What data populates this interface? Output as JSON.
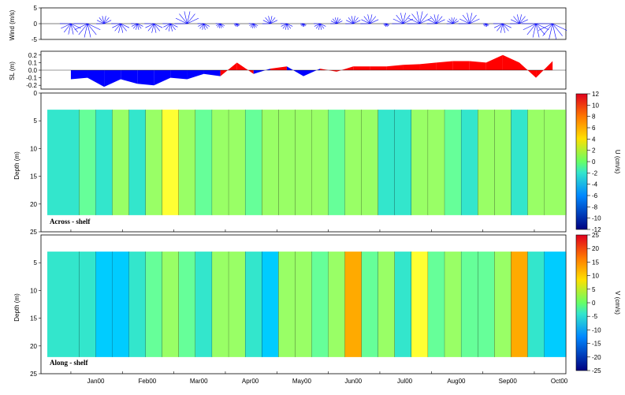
{
  "chart_data": [
    {
      "type": "area",
      "name": "wind",
      "ylabel": "Wind (m/s)",
      "ylim": [
        -5,
        5
      ],
      "yticks": [
        -5,
        0,
        5
      ],
      "months": [
        "Jan00",
        "Feb00",
        "Mar00",
        "Apr00",
        "May00",
        "Jun00",
        "Jul00",
        "Aug00",
        "Sep00",
        "Oct00"
      ],
      "x_days": [
        0,
        10,
        20,
        30,
        40,
        50,
        60,
        70,
        80,
        90,
        100,
        110,
        120,
        130,
        140,
        150,
        160,
        170,
        180,
        190,
        200,
        210,
        220,
        230,
        240,
        250,
        260,
        270,
        280,
        290
      ],
      "values": [
        -3.5,
        -4.5,
        2.5,
        -3,
        -2,
        -3,
        -2.5,
        4,
        -2,
        -1.5,
        -1,
        -1.5,
        2.5,
        -2,
        -1,
        -2,
        2,
        2.5,
        3,
        -1,
        3.5,
        4,
        3,
        2,
        3.5,
        -1,
        -3,
        3,
        -4.5,
        -5
      ],
      "colors": {
        "fill": "#0000ff"
      }
    },
    {
      "type": "area",
      "name": "sea-level",
      "ylabel": "SL (m)",
      "ylim": [
        -0.25,
        0.25
      ],
      "yticks": [
        -0.2,
        -0.1,
        0.0,
        0.1,
        0.2
      ],
      "x_days": [
        0,
        10,
        20,
        30,
        40,
        50,
        60,
        70,
        80,
        90,
        100,
        110,
        120,
        130,
        140,
        150,
        160,
        170,
        180,
        190,
        200,
        210,
        220,
        230,
        240,
        250,
        260,
        270,
        280,
        290
      ],
      "values": [
        -0.12,
        -0.1,
        -0.22,
        -0.12,
        -0.18,
        -0.2,
        -0.1,
        -0.12,
        -0.05,
        -0.08,
        0.1,
        -0.05,
        0.02,
        0.05,
        -0.08,
        0.02,
        -0.02,
        0.05,
        0.05,
        0.05,
        0.07,
        0.08,
        0.1,
        0.12,
        0.12,
        0.1,
        0.2,
        0.1,
        -0.1,
        0.12
      ],
      "colors": {
        "positive": "#ff0000",
        "negative": "#0000ff"
      }
    },
    {
      "type": "heatmap",
      "name": "across-shelf",
      "panel_label": "Across - shelf",
      "ylabel": "Depth (m)",
      "ylim": [
        25,
        0
      ],
      "yticks": [
        0,
        5,
        10,
        15,
        20,
        25
      ],
      "data_depth_range": [
        3,
        22
      ],
      "colorbar": {
        "label": "U (cm/s)",
        "ticks": [
          12,
          10,
          8,
          6,
          4,
          2,
          0,
          -2,
          -4,
          -6,
          -8,
          -10,
          -12
        ]
      },
      "x_days": [
        0,
        10,
        20,
        30,
        40,
        50,
        60,
        70,
        80,
        90,
        100,
        110,
        120,
        130,
        140,
        150,
        160,
        170,
        180,
        190,
        200,
        210,
        220,
        230,
        240,
        250,
        260,
        270,
        280,
        290
      ],
      "values": [
        -2,
        -1,
        -3,
        1,
        -2,
        0,
        4,
        0,
        -1,
        0,
        2,
        -1,
        0,
        1,
        0,
        0,
        -1,
        0,
        1,
        -2,
        -3,
        1,
        0,
        -1,
        -2,
        0,
        0,
        -3,
        0,
        0
      ]
    },
    {
      "type": "heatmap",
      "name": "along-shelf",
      "panel_label": "Along - shelf",
      "ylabel": "Depth (m)",
      "ylim": [
        25,
        0
      ],
      "yticks": [
        5,
        10,
        15,
        20,
        25
      ],
      "data_depth_range": [
        3,
        22
      ],
      "colorbar": {
        "label": "V (cm/s)",
        "ticks": [
          25,
          20,
          15,
          10,
          5,
          0,
          -5,
          -10,
          -15,
          -20,
          -25
        ]
      },
      "x_days": [
        0,
        10,
        20,
        30,
        40,
        50,
        60,
        70,
        80,
        90,
        100,
        110,
        120,
        130,
        140,
        150,
        160,
        170,
        180,
        190,
        200,
        210,
        220,
        230,
        240,
        250,
        260,
        270,
        280,
        290
      ],
      "values": [
        -8,
        -5,
        -10,
        -12,
        -5,
        -3,
        5,
        -2,
        -4,
        2,
        3,
        -5,
        -10,
        2,
        5,
        -2,
        4,
        15,
        -3,
        5,
        -4,
        10,
        -2,
        5,
        -3,
        -2,
        3,
        15,
        -4,
        -12
      ]
    }
  ]
}
